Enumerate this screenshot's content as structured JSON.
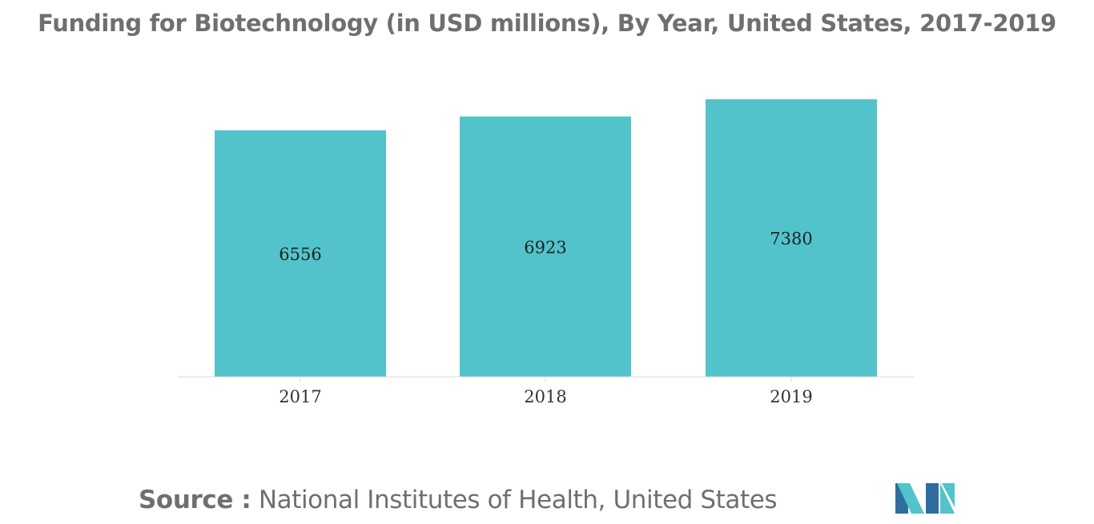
{
  "chart_data": {
    "type": "bar",
    "title": "Funding for Biotechnology (in USD millions), By Year, United States, 2017-2019",
    "categories": [
      "2017",
      "2018",
      "2019"
    ],
    "values": [
      6556,
      6923,
      7380
    ],
    "xlabel": "",
    "ylabel": "",
    "ylim": [
      0,
      7500
    ],
    "grid": false,
    "legend": "none",
    "bar_color": "#52c3ca",
    "data_labels": true
  },
  "source": {
    "label": "Source :",
    "text": " National Institutes of Health, United States"
  },
  "colors": {
    "title": "#6f6f6f",
    "bar": "#52c3ca",
    "axis": "#d9d9d9",
    "label": "#333333",
    "logo_dark": "#2e6e9e",
    "logo_light": "#52c3ca"
  },
  "logo": {
    "icon": "mordor-intelligence-logo-icon"
  }
}
